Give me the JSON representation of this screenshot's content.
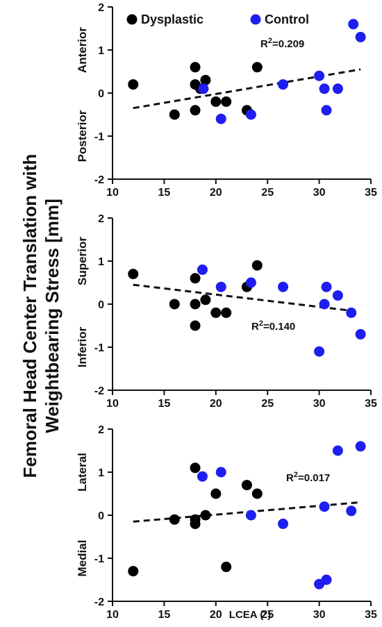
{
  "figure": {
    "ylabel_line1": "Femoral Head Center Translation with",
    "ylabel_line2": "Weightbearing Stress [mm]",
    "xlabel": "LCEA (°)"
  },
  "legend": {
    "position": "top",
    "items": [
      {
        "name": "Dysplastic",
        "color": "#000000"
      },
      {
        "name": "Control",
        "color": "#1e1ef0"
      }
    ]
  },
  "chart_data": [
    {
      "type": "scatter",
      "xlim": [
        10,
        35
      ],
      "ylim": [
        -2,
        2
      ],
      "xticks": [
        10,
        15,
        20,
        25,
        30,
        35
      ],
      "yticks": [
        2,
        1,
        0,
        -1,
        -2
      ],
      "grid": false,
      "side_labels": {
        "top": "Anterior",
        "bottom": "Posterior"
      },
      "r2_prefix": "R",
      "r2_sup": "2",
      "r2_value": "=0.209",
      "trendline": {
        "x": [
          12,
          34
        ],
        "y": [
          -0.35,
          0.55
        ]
      },
      "series": [
        {
          "name": "Dysplastic",
          "color": "#000000",
          "x": [
            12,
            16,
            18,
            18,
            18,
            18.5,
            19,
            20,
            21,
            23,
            24
          ],
          "y": [
            0.2,
            -0.5,
            0.6,
            0.2,
            -0.4,
            0.1,
            0.3,
            -0.2,
            -0.2,
            -0.4,
            0.6
          ]
        },
        {
          "name": "Control",
          "color": "#1e1ef0",
          "x": [
            18.8,
            20.5,
            23.4,
            26.5,
            30,
            30.5,
            30.7,
            31.8,
            33.3,
            34
          ],
          "y": [
            0.1,
            -0.6,
            -0.5,
            0.2,
            0.4,
            0.1,
            -0.4,
            0.1,
            1.6,
            1.3
          ]
        }
      ]
    },
    {
      "type": "scatter",
      "xlim": [
        10,
        35
      ],
      "ylim": [
        -2,
        2
      ],
      "xticks": [
        10,
        15,
        20,
        25,
        30,
        35
      ],
      "yticks": [
        2,
        1,
        0,
        -1,
        -2
      ],
      "grid": false,
      "side_labels": {
        "top": "Superior",
        "bottom": "Inferior"
      },
      "r2_prefix": "R",
      "r2_sup": "2",
      "r2_value": "=0.140",
      "trendline": {
        "x": [
          12,
          33
        ],
        "y": [
          0.45,
          -0.15
        ]
      },
      "series": [
        {
          "name": "Dysplastic",
          "color": "#000000",
          "x": [
            12,
            16,
            18,
            18,
            18,
            19,
            20,
            21,
            23,
            24
          ],
          "y": [
            0.7,
            0.0,
            0.6,
            0.0,
            -0.5,
            0.1,
            -0.2,
            -0.2,
            0.4,
            0.9
          ]
        },
        {
          "name": "Control",
          "color": "#1e1ef0",
          "x": [
            18.7,
            20.5,
            23.4,
            26.5,
            30,
            30.5,
            30.7,
            31.8,
            33.1,
            34
          ],
          "y": [
            0.8,
            0.4,
            0.5,
            0.4,
            -1.1,
            0.0,
            0.4,
            0.2,
            -0.2,
            -0.7
          ]
        }
      ]
    },
    {
      "type": "scatter",
      "xlim": [
        10,
        35
      ],
      "ylim": [
        -2,
        2
      ],
      "xticks": [
        10,
        15,
        20,
        25,
        30,
        35
      ],
      "yticks": [
        2,
        1,
        0,
        -1,
        -2
      ],
      "grid": false,
      "side_labels": {
        "top": "Lateral",
        "bottom": "Medial"
      },
      "r2_prefix": "R",
      "r2_sup": "2",
      "r2_value": "=0.017",
      "trendline": {
        "x": [
          12,
          34
        ],
        "y": [
          -0.15,
          0.3
        ]
      },
      "series": [
        {
          "name": "Dysplastic",
          "color": "#000000",
          "x": [
            12,
            16,
            18,
            18,
            18,
            19,
            20,
            21,
            23,
            24
          ],
          "y": [
            -1.3,
            -0.1,
            1.1,
            -0.1,
            -0.2,
            0.0,
            0.5,
            -1.2,
            0.7,
            0.5
          ]
        },
        {
          "name": "Control",
          "color": "#1e1ef0",
          "x": [
            18.7,
            20.5,
            23.4,
            26.5,
            30,
            30.5,
            30.7,
            31.8,
            33.1,
            34
          ],
          "y": [
            0.9,
            1.0,
            0.0,
            -0.2,
            -1.6,
            0.2,
            -1.5,
            1.5,
            0.1,
            1.6
          ]
        }
      ]
    }
  ]
}
